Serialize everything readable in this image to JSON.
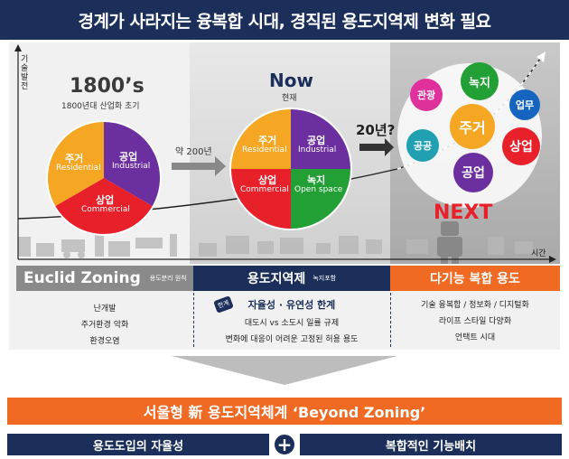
{
  "title": "경계가 사라지는 융복합 시대, 경직된 용도지역제 변화 필요",
  "axis": {
    "y_label": "기술발전",
    "x_label": "시간"
  },
  "era_1800": {
    "heading": "1800’s",
    "subheading": "1800년대 산업화 초기",
    "slices": [
      {
        "ko": "주거",
        "en": "Residential",
        "color": "#f5a623"
      },
      {
        "ko": "공업",
        "en": "Industrial",
        "color": "#6b2fa0"
      },
      {
        "ko": "상업",
        "en": "Commercial",
        "color": "#e8202a"
      }
    ]
  },
  "arrow_label": "약 200년",
  "era_now": {
    "heading": "Now",
    "subheading": "현재",
    "slices": [
      {
        "ko": "주거",
        "en": "Residential",
        "color": "#f5a623"
      },
      {
        "ko": "공업",
        "en": "Industrial",
        "color": "#6b2fa0"
      },
      {
        "ko": "상업",
        "en": "Commercial",
        "color": "#e8202a"
      },
      {
        "ko": "녹지",
        "en": "Open space",
        "color": "#23a035"
      }
    ]
  },
  "future_label": "20년?",
  "era_next": {
    "heading": "NEXT",
    "bubbles": [
      {
        "label": "관광",
        "color": "#e0309b"
      },
      {
        "label": "녹지",
        "color": "#23a035"
      },
      {
        "label": "업무",
        "color": "#1565c0"
      },
      {
        "label": "주거",
        "color": "#f5a623"
      },
      {
        "label": "공공",
        "color": "#20a0b0"
      },
      {
        "label": "상업",
        "color": "#e8202a"
      },
      {
        "label": "공업",
        "color": "#6b2fa0"
      }
    ]
  },
  "columns": [
    {
      "head": "Euclid Zoning",
      "tag": "용도분리 원칙",
      "color": "#8a8a8a",
      "items": [
        "난개발",
        "주거환경 악화",
        "환경오염"
      ]
    },
    {
      "head": "용도지역제",
      "tag": "녹지포함",
      "color": "#1b2f5a",
      "badge": "한계",
      "subhead": "자율성 · 유연성 한계",
      "items": [
        "대도시 vs 소도시 일률 규제",
        "변화에 대응이 어려운 고정된 허용 용도"
      ]
    },
    {
      "head": "다기능 복합 용도",
      "tag": "",
      "color": "#f06a24",
      "items": [
        "기술 융복합 / 정보화 / 디지털화",
        "라이프 스타일 다양화",
        "언택트 시대"
      ]
    }
  ],
  "bottom": {
    "banner": "서울형 新 용도지역체계  ‘Beyond Zoning’",
    "left": "용도도입의 자율성",
    "plus": "+",
    "right": "복합적인 기능배치"
  }
}
